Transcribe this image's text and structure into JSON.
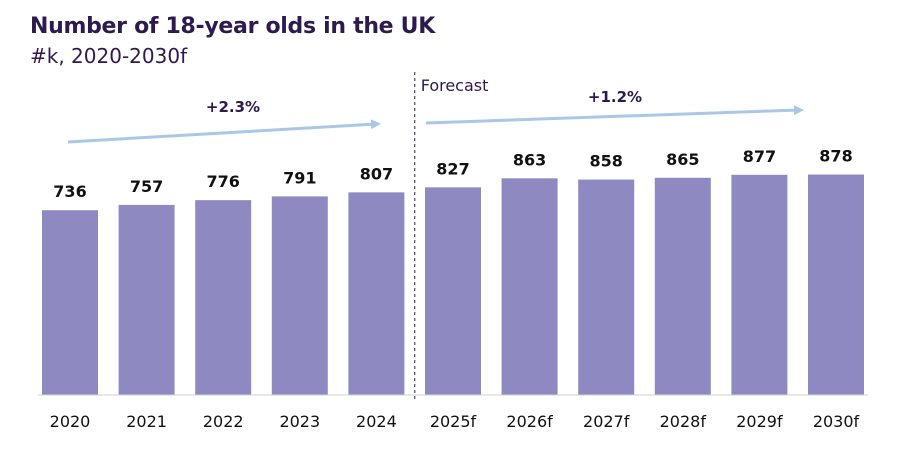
{
  "chart_data": {
    "type": "bar",
    "title": "Number of 18-year olds in the UK",
    "subtitle": "#k, 2020-2030f",
    "categories": [
      "2020",
      "2021",
      "2022",
      "2023",
      "2024",
      "2025f",
      "2026f",
      "2027f",
      "2028f",
      "2029f",
      "2030f"
    ],
    "values": [
      736,
      757,
      776,
      791,
      807,
      827,
      863,
      858,
      865,
      877,
      878
    ],
    "value_labels": [
      "736",
      "757",
      "776",
      "791",
      "807",
      "827",
      "863",
      "858",
      "865",
      "877",
      "878"
    ],
    "forecast_label": "Forecast",
    "annotations": [
      {
        "text": "+2.3%",
        "from_category": "2020",
        "to_category": "2024"
      },
      {
        "text": "+1.2%",
        "from_category": "2025f",
        "to_category": "2030f"
      }
    ],
    "bar_color": "#8f89c2",
    "arrow_color": "#a9c8e8",
    "divider_color": "#555577",
    "grid": false,
    "legend": "none"
  }
}
